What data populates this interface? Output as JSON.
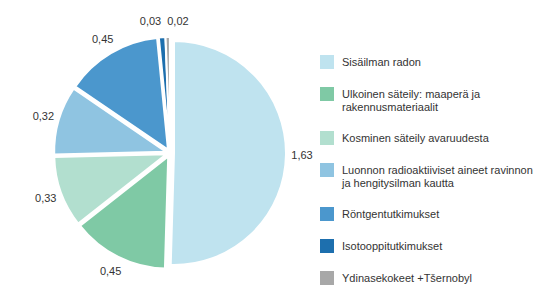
{
  "chart_data": {
    "type": "pie",
    "categories": [
      "Sisäilman radon",
      "Ulkoinen säteily: maaperä ja rakennusmateriaalit",
      "Kosminen säteily avaruudesta",
      "Luonnon radioaktiiviset aineet ravinnon ja hengitysilman kautta",
      "Röntgentutkimukset",
      "Isotooppitutkimukset",
      "Ydinasekokeet +Tšernobyl"
    ],
    "values": [
      1.63,
      0.45,
      0.33,
      0.32,
      0.45,
      0.03,
      0.02
    ],
    "value_labels": [
      "1,63",
      "0,45",
      "0,33",
      "0,32",
      "0,45",
      "0,03",
      "0,02"
    ],
    "colors": [
      "#bfe3ef",
      "#7fc9a5",
      "#b2dfcf",
      "#8fc4e1",
      "#4b97cd",
      "#1d6fae",
      "#a8a8a8"
    ],
    "data_labels": true,
    "legend": "right"
  }
}
